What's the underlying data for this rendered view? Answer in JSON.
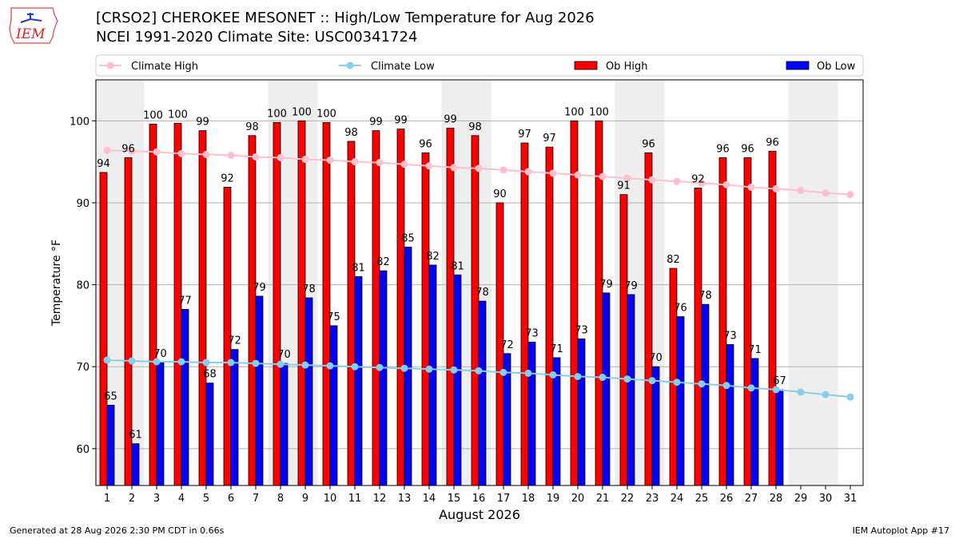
{
  "header": {
    "logo_text": "IEM",
    "title_line1": "[CRSO2] CHEROKEE MESONET :: High/Low Temperature for Aug 2026",
    "title_line2": "NCEI 1991-2020 Climate Site: USC00341724"
  },
  "footer": {
    "generated": "Generated at 28 Aug 2026 2:30 PM CDT in 0.66s",
    "app": "IEM Autoplot App #17"
  },
  "colors": {
    "ob_high": "#ff0000",
    "ob_low": "#0000ff",
    "climate_high": "#ffc0cb",
    "climate_low": "#87ceeb",
    "weekend_shade": "#eeeeee"
  },
  "chart_data": {
    "type": "bar",
    "xlabel": "August 2026",
    "ylabel": "Temperature °F",
    "ylim": [
      55.5,
      105
    ],
    "yticks": [
      60,
      70,
      80,
      90,
      100
    ],
    "grid": true,
    "legend_placement": "top",
    "days": [
      1,
      2,
      3,
      4,
      5,
      6,
      7,
      8,
      9,
      10,
      11,
      12,
      13,
      14,
      15,
      16,
      17,
      18,
      19,
      20,
      21,
      22,
      23,
      24,
      25,
      26,
      27,
      28,
      29,
      30,
      31
    ],
    "shaded_days": [
      1,
      2,
      8,
      9,
      15,
      16,
      22,
      23,
      29,
      30
    ],
    "series": [
      {
        "name": "Climate High",
        "kind": "line",
        "values": [
          96.4,
          96.3,
          96.2,
          96.0,
          95.9,
          95.8,
          95.6,
          95.5,
          95.3,
          95.2,
          95.0,
          94.9,
          94.7,
          94.5,
          94.3,
          94.2,
          94.0,
          93.8,
          93.6,
          93.4,
          93.2,
          93.0,
          92.8,
          92.6,
          92.4,
          92.2,
          91.9,
          91.7,
          91.5,
          91.2,
          91.0
        ]
      },
      {
        "name": "Climate Low",
        "kind": "line",
        "values": [
          70.8,
          70.7,
          70.6,
          70.6,
          70.5,
          70.5,
          70.4,
          70.3,
          70.2,
          70.1,
          70.0,
          69.9,
          69.8,
          69.7,
          69.6,
          69.5,
          69.3,
          69.2,
          69.0,
          68.8,
          68.7,
          68.5,
          68.3,
          68.1,
          67.9,
          67.7,
          67.4,
          67.2,
          66.9,
          66.6,
          66.3
        ]
      },
      {
        "name": "Ob High",
        "kind": "bar",
        "values": [
          93.7,
          95.5,
          99.6,
          99.7,
          98.8,
          91.9,
          98.2,
          99.8,
          100.0,
          99.8,
          97.5,
          98.8,
          99.0,
          96.1,
          99.1,
          98.2,
          90.0,
          97.3,
          96.8,
          100.0,
          100.0,
          91.0,
          96.1,
          82.0,
          91.8,
          95.5,
          95.5,
          96.3
        ],
        "labels": [
          "94",
          "96",
          "100",
          "100",
          "99",
          "92",
          "98",
          "100",
          "100",
          "100",
          "98",
          "99",
          "99",
          "96",
          "99",
          "98",
          "90",
          "97",
          "97",
          "100",
          "100",
          "91",
          "96",
          "82",
          "92",
          "96",
          "96",
          "96"
        ]
      },
      {
        "name": "Ob Low",
        "kind": "bar",
        "values": [
          65.3,
          60.6,
          70.5,
          77.0,
          68.0,
          72.1,
          78.6,
          70.4,
          78.4,
          75.0,
          81.0,
          81.7,
          84.6,
          82.4,
          81.2,
          78.0,
          71.6,
          73.0,
          71.1,
          73.4,
          79.0,
          78.8,
          70.0,
          76.1,
          77.6,
          72.7,
          71.0,
          67.2
        ],
        "labels": [
          "65",
          "61",
          "70",
          "77",
          "68",
          "72",
          "79",
          "70",
          "78",
          "75",
          "81",
          "82",
          "85",
          "82",
          "81",
          "78",
          "72",
          "73",
          "71",
          "73",
          "79",
          "79",
          "70",
          "76",
          "78",
          "73",
          "71",
          "67"
        ]
      }
    ]
  }
}
